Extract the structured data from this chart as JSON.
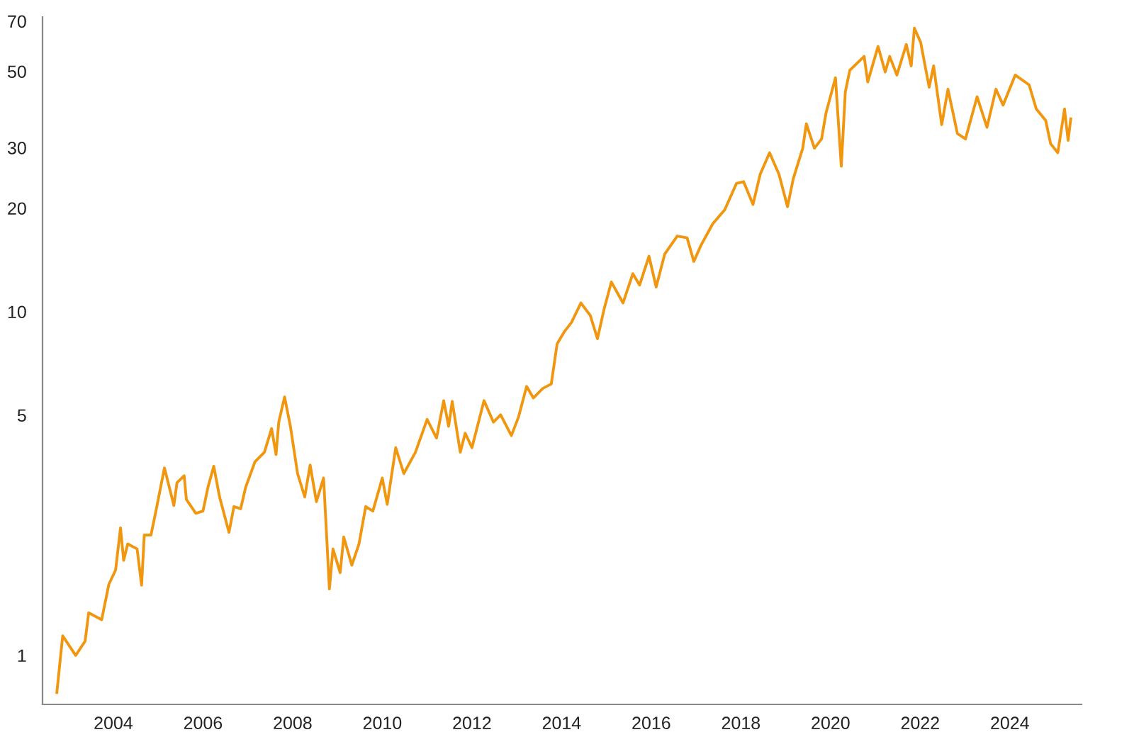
{
  "chart_data": {
    "type": "line",
    "log": true,
    "grid": false,
    "legend": false,
    "marker": "none",
    "line_style": "solid",
    "xlim": [
      2002.42,
      2025.6
    ],
    "xticks": [
      2004,
      2006,
      2008,
      2010,
      2012,
      2014,
      2016,
      2018,
      2020,
      2022,
      2024
    ],
    "ylim": [
      0.72,
      72
    ],
    "yticks": [
      1,
      5,
      10,
      20,
      30,
      50,
      70
    ],
    "x": [
      2002.74,
      2002.87,
      2003.16,
      2003.37,
      2003.45,
      2003.74,
      2003.9,
      2004.05,
      2004.16,
      2004.23,
      2004.32,
      2004.53,
      2004.63,
      2004.69,
      2004.84,
      2004.95,
      2005.14,
      2005.35,
      2005.42,
      2005.58,
      2005.63,
      2005.84,
      2006.0,
      2006.11,
      2006.24,
      2006.37,
      2006.58,
      2006.69,
      2006.84,
      2006.95,
      2007.16,
      2007.37,
      2007.53,
      2007.63,
      2007.69,
      2007.82,
      2007.95,
      2008.11,
      2008.27,
      2008.39,
      2008.53,
      2008.69,
      2008.74,
      2008.82,
      2008.9,
      2009.06,
      2009.14,
      2009.32,
      2009.48,
      2009.63,
      2009.79,
      2010.0,
      2010.11,
      2010.3,
      2010.48,
      2010.74,
      2011.0,
      2011.21,
      2011.37,
      2011.48,
      2011.56,
      2011.74,
      2011.85,
      2012.0,
      2012.27,
      2012.48,
      2012.64,
      2012.88,
      2013.04,
      2013.22,
      2013.37,
      2013.58,
      2013.77,
      2013.9,
      2014.06,
      2014.22,
      2014.43,
      2014.64,
      2014.8,
      2014.95,
      2015.11,
      2015.37,
      2015.59,
      2015.74,
      2015.95,
      2016.11,
      2016.3,
      2016.58,
      2016.8,
      2016.95,
      2017.11,
      2017.37,
      2017.64,
      2017.9,
      2018.06,
      2018.27,
      2018.43,
      2018.64,
      2018.85,
      2019.04,
      2019.17,
      2019.38,
      2019.46,
      2019.64,
      2019.8,
      2019.9,
      2020.11,
      2020.24,
      2020.33,
      2020.43,
      2020.75,
      2020.83,
      2021.06,
      2021.22,
      2021.32,
      2021.48,
      2021.69,
      2021.8,
      2021.87,
      2022.01,
      2022.2,
      2022.3,
      2022.48,
      2022.62,
      2022.83,
      2023.01,
      2023.27,
      2023.49,
      2023.69,
      2023.85,
      2024.12,
      2024.43,
      2024.59,
      2024.8,
      2024.91,
      2025.07,
      2025.22,
      2025.3,
      2025.36
    ],
    "series": [
      {
        "color": "#f0960f",
        "values": [
          0.78,
          1.14,
          1.0,
          1.1,
          1.33,
          1.27,
          1.61,
          1.77,
          2.35,
          1.89,
          2.11,
          2.04,
          1.6,
          2.24,
          2.24,
          2.63,
          3.51,
          2.73,
          3.18,
          3.33,
          2.84,
          2.59,
          2.63,
          3.08,
          3.55,
          2.89,
          2.28,
          2.71,
          2.67,
          3.08,
          3.66,
          3.9,
          4.57,
          3.84,
          4.77,
          5.65,
          4.64,
          3.38,
          2.89,
          3.58,
          2.8,
          3.28,
          2.47,
          1.56,
          2.04,
          1.74,
          2.21,
          1.83,
          2.11,
          2.71,
          2.63,
          3.28,
          2.75,
          4.02,
          3.38,
          3.9,
          4.86,
          4.29,
          5.51,
          4.64,
          5.48,
          3.9,
          4.43,
          4.02,
          5.51,
          4.77,
          5.01,
          4.36,
          4.94,
          6.06,
          5.61,
          5.98,
          6.16,
          8.06,
          8.74,
          9.3,
          10.6,
          9.75,
          8.34,
          10.2,
          12.2,
          10.6,
          12.9,
          11.95,
          14.5,
          11.8,
          14.7,
          16.6,
          16.4,
          14.0,
          15.6,
          18.0,
          19.8,
          23.6,
          23.9,
          20.5,
          25.1,
          29.0,
          25.1,
          20.2,
          24.4,
          29.9,
          35.2,
          29.9,
          31.8,
          37.9,
          47.9,
          26.5,
          43.6,
          50.4,
          55.3,
          46.6,
          59.1,
          49.8,
          55.3,
          48.8,
          59.9,
          51.9,
          66.8,
          60.8,
          45.0,
          51.9,
          35.0,
          44.4,
          33.0,
          31.8,
          42.2,
          34.4,
          44.4,
          39.9,
          48.8,
          45.7,
          38.9,
          36.0,
          30.8,
          29.0,
          38.9,
          31.5,
          36.4
        ]
      }
    ]
  }
}
